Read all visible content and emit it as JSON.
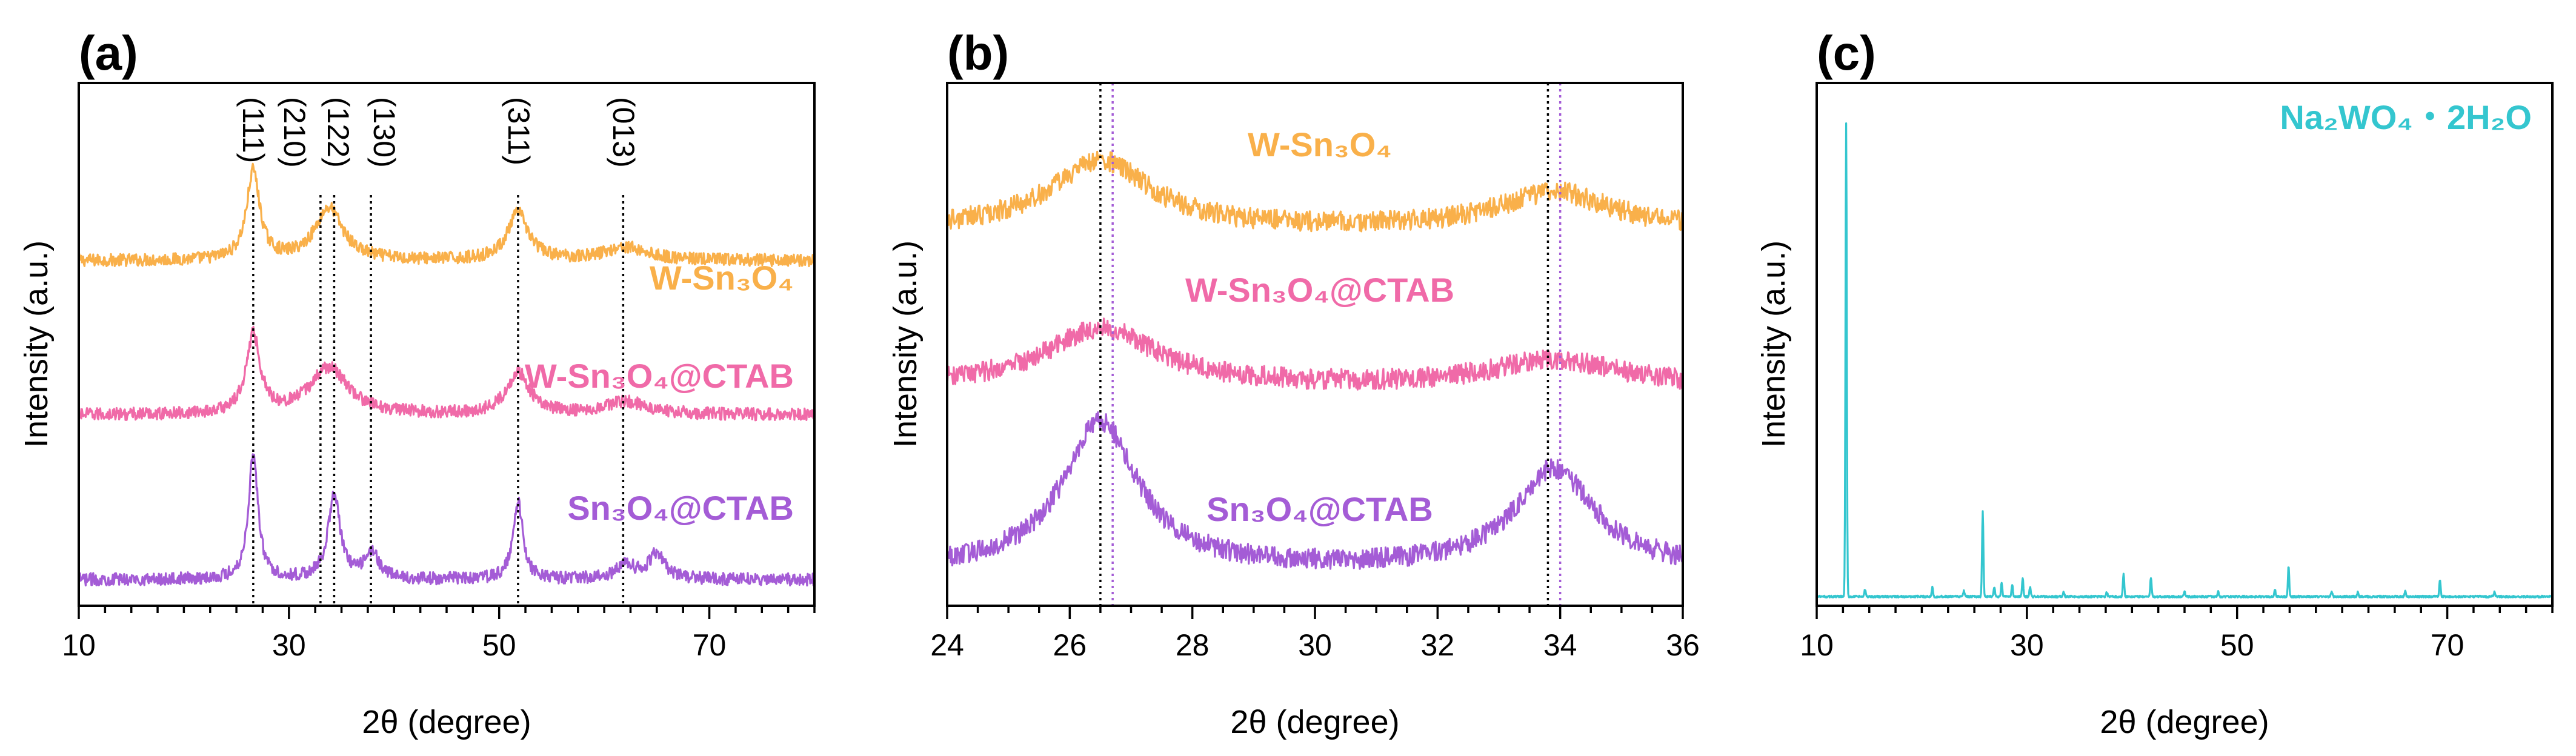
{
  "chart_data": [
    {
      "panel": "(a)",
      "type": "line",
      "xlabel": "2θ (degree)",
      "ylabel": "Intensity (a.u.)",
      "xlim": [
        10,
        80
      ],
      "xticks": [
        10,
        30,
        50,
        70
      ],
      "hkl_markers": [
        {
          "label": "(111)",
          "x": 26.6
        },
        {
          "label": "(210)",
          "x": 33.0
        },
        {
          "label": "(122)",
          "x": 34.3
        },
        {
          "label": "(130)",
          "x": 37.8
        },
        {
          "label": "(311)",
          "x": 51.8
        },
        {
          "label": "(013)",
          "x": 61.8
        }
      ],
      "series": [
        {
          "name": "W-Sn₃O₄",
          "color": "#F9B04A",
          "offset": 0.62,
          "peaks": [
            [
              26.6,
              0.17,
              0.75
            ],
            [
              33.8,
              0.1,
              1.6
            ],
            [
              51.8,
              0.09,
              1.2
            ],
            [
              62.0,
              0.025,
              2.5
            ]
          ],
          "baseline": 0.04
        },
        {
          "name": "W-Sn₃O₄@CTAB",
          "color": "#F06AA8",
          "offset": 0.33,
          "peaks": [
            [
              26.6,
              0.15,
              0.8
            ],
            [
              33.8,
              0.09,
              2.2
            ],
            [
              51.8,
              0.08,
              1.3
            ],
            [
              62.0,
              0.025,
              2.5
            ]
          ],
          "baseline": 0.035
        },
        {
          "name": "Sn₃O₄@CTAB",
          "color": "#A45CD6",
          "offset": 0.02,
          "peaks": [
            [
              26.6,
              0.24,
              0.55
            ],
            [
              34.3,
              0.16,
              0.7
            ],
            [
              37.9,
              0.05,
              0.8
            ],
            [
              51.8,
              0.15,
              0.55
            ],
            [
              62.0,
              0.03,
              1.0
            ],
            [
              65.0,
              0.05,
              0.9
            ]
          ],
          "baseline": 0.03
        }
      ],
      "labels": [
        "W-Sn₃O₄",
        "W-Sn₃O₄@CTAB",
        "Sn₃O₄@CTAB"
      ]
    },
    {
      "panel": "(b)",
      "type": "line",
      "xlabel": "2θ (degree)",
      "ylabel": "Intensity (a.u.)",
      "xlim": [
        24,
        36
      ],
      "xticks": [
        24,
        26,
        28,
        30,
        32,
        34,
        36
      ],
      "markers": [
        {
          "x": 26.5,
          "color": "#000000"
        },
        {
          "x": 26.7,
          "color": "#A45CD6"
        },
        {
          "x": 33.8,
          "color": "#000000"
        },
        {
          "x": 34.0,
          "color": "#A45CD6"
        }
      ],
      "series": [
        {
          "name": "W-Sn₃O₄",
          "color": "#F9B04A",
          "offset": 0.67,
          "peaks": [
            [
              26.5,
              0.13,
              1.0
            ],
            [
              33.9,
              0.07,
              1.1
            ]
          ],
          "baseline": 0.05
        },
        {
          "name": "W-Sn₃O₄@CTAB",
          "color": "#F06AA8",
          "offset": 0.38,
          "peaks": [
            [
              26.5,
              0.11,
              1.1
            ],
            [
              33.9,
              0.05,
              1.2
            ]
          ],
          "baseline": 0.04
        },
        {
          "name": "Sn₃O₄@CTAB",
          "color": "#A45CD6",
          "offset": 0.03,
          "peaks": [
            [
              26.5,
              0.28,
              0.75
            ],
            [
              33.9,
              0.19,
              0.8
            ]
          ],
          "baseline": 0.04
        }
      ],
      "labels": [
        "W-Sn₃O₄",
        "W-Sn₃O₄@CTAB",
        "Sn₃O₄@CTAB"
      ]
    },
    {
      "panel": "(c)",
      "type": "line",
      "xlabel": "2θ (degree)",
      "ylabel": "Intensity (a.u.)",
      "xlim": [
        10,
        80
      ],
      "xticks": [
        10,
        30,
        50,
        70
      ],
      "legend": "Na₂WO₄・2H₂O",
      "color": "#34C6CF",
      "sticks": [
        [
          12.8,
          1.0
        ],
        [
          14.6,
          0.015
        ],
        [
          21.0,
          0.02
        ],
        [
          24.0,
          0.012
        ],
        [
          25.8,
          0.18
        ],
        [
          26.9,
          0.02
        ],
        [
          27.6,
          0.03
        ],
        [
          28.6,
          0.025
        ],
        [
          29.6,
          0.04
        ],
        [
          30.3,
          0.02
        ],
        [
          33.5,
          0.01
        ],
        [
          37.6,
          0.01
        ],
        [
          39.2,
          0.05
        ],
        [
          41.8,
          0.04
        ],
        [
          45.0,
          0.01
        ],
        [
          48.2,
          0.01
        ],
        [
          53.6,
          0.015
        ],
        [
          54.9,
          0.065
        ],
        [
          59.0,
          0.01
        ],
        [
          61.5,
          0.01
        ],
        [
          66.0,
          0.012
        ],
        [
          69.3,
          0.035
        ],
        [
          74.5,
          0.01
        ]
      ]
    }
  ]
}
